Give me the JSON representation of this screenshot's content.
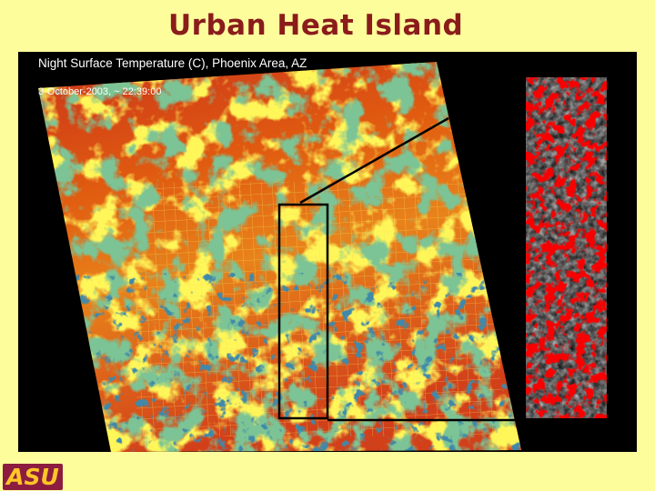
{
  "slide": {
    "title": "Urban Heat Island",
    "image": {
      "caption": "Night Surface Temperature (C), Phoenix Area, AZ",
      "timestamp": "3-October-2003, ~ 22:39:00"
    },
    "logo": "ASU"
  }
}
